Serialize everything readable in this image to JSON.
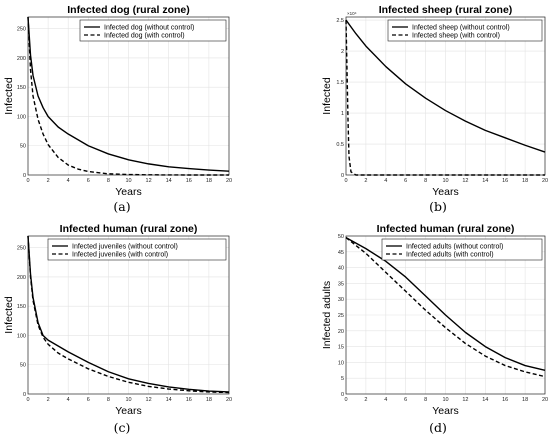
{
  "chart_data": [
    {
      "type": "line",
      "title": "Infected dog (rural zone)",
      "xlabel": "Years",
      "ylabel": "Infected",
      "xlim": [
        0,
        20
      ],
      "ylim": [
        0,
        270
      ],
      "xticks": [
        "0",
        "2",
        "4",
        "6",
        "8",
        "10",
        "12",
        "14",
        "16",
        "18",
        "20"
      ],
      "yticks": [
        "0",
        "50",
        "100",
        "150",
        "200",
        "250"
      ],
      "ytick_values": [
        0,
        50,
        100,
        150,
        200,
        250
      ],
      "grid": true,
      "legend_position": "top-right",
      "caption": "(a)",
      "series": [
        {
          "name": "Infected dog (without control)",
          "style": "solid",
          "x": [
            0,
            0.25,
            0.5,
            1,
            1.5,
            2,
            3,
            4,
            6,
            8,
            10,
            12,
            14,
            16,
            18,
            20
          ],
          "y": [
            270,
            205,
            170,
            135,
            115,
            100,
            82,
            70,
            50,
            36,
            26,
            19,
            14,
            11,
            8.5,
            6.5
          ]
        },
        {
          "name": "Infected dog (with control)",
          "style": "dashed",
          "x": [
            0,
            0.25,
            0.5,
            1,
            1.5,
            2,
            3,
            4,
            5,
            6,
            8,
            10,
            12,
            14,
            16,
            18,
            20
          ],
          "y": [
            270,
            180,
            135,
            95,
            70,
            52,
            30,
            17,
            10,
            6,
            2,
            0.8,
            0.3,
            0.1,
            0,
            0,
            0
          ]
        }
      ]
    },
    {
      "type": "line",
      "title": "Infected sheep (rural zone)",
      "xlabel": "Years",
      "ylabel": "Infected",
      "xlim": [
        0,
        20
      ],
      "ylim": [
        0,
        2.55
      ],
      "xticks": [
        "0",
        "2",
        "4",
        "6",
        "8",
        "10",
        "12",
        "14",
        "16",
        "18",
        "20"
      ],
      "yticks": [
        "0",
        "0.5",
        "1",
        "1.5",
        "2",
        "2.5"
      ],
      "ytick_values": [
        0,
        0.5,
        1,
        1.5,
        2,
        2.5
      ],
      "y_multiplier": "×10⁴",
      "grid": true,
      "legend_position": "top-right",
      "caption": "(b)",
      "series": [
        {
          "name": "Infected sheep (without control)",
          "style": "solid",
          "x": [
            0,
            1,
            2,
            4,
            6,
            8,
            10,
            12,
            14,
            16,
            18,
            20
          ],
          "y": [
            2.5,
            2.28,
            2.08,
            1.75,
            1.47,
            1.24,
            1.04,
            0.87,
            0.72,
            0.6,
            0.48,
            0.37
          ]
        },
        {
          "name": "Infected sheep (with control)",
          "style": "dashed",
          "x": [
            0,
            0.1,
            0.2,
            0.3,
            0.5,
            1,
            2,
            5,
            10,
            15,
            20
          ],
          "y": [
            2.5,
            1.7,
            0.9,
            0.3,
            0.05,
            0,
            0,
            0,
            0,
            0,
            0
          ]
        }
      ]
    },
    {
      "type": "line",
      "title": "Infected human (rural zone)",
      "xlabel": "Years",
      "ylabel": "Infected",
      "xlim": [
        0,
        20
      ],
      "ylim": [
        0,
        270
      ],
      "xticks": [
        "0",
        "2",
        "4",
        "6",
        "8",
        "10",
        "12",
        "14",
        "16",
        "18",
        "20"
      ],
      "yticks": [
        "0",
        "50",
        "100",
        "150",
        "200",
        "250"
      ],
      "ytick_values": [
        0,
        50,
        100,
        150,
        200,
        250
      ],
      "grid": true,
      "legend_position": "top-right",
      "caption": "(c)",
      "series": [
        {
          "name": "Infected juveniles (without control)",
          "style": "solid",
          "x": [
            0,
            0.25,
            0.5,
            1,
            1.5,
            2,
            3,
            4,
            6,
            8,
            10,
            12,
            14,
            16,
            18,
            20
          ],
          "y": [
            275,
            205,
            165,
            122,
            100,
            92,
            82,
            72,
            54,
            38,
            26,
            18,
            12,
            8,
            5,
            3.5
          ]
        },
        {
          "name": "Infected juveniles (with control)",
          "style": "dashed",
          "x": [
            0,
            0.25,
            0.5,
            1,
            1.5,
            2,
            3,
            4,
            6,
            8,
            10,
            12,
            14,
            16,
            18,
            20
          ],
          "y": [
            275,
            200,
            160,
            118,
            97,
            85,
            70,
            60,
            43,
            30,
            20,
            13,
            8.5,
            5.5,
            3.5,
            2.5
          ]
        }
      ]
    },
    {
      "type": "line",
      "title": "Infected human (rural zone)",
      "xlabel": "Years",
      "ylabel": "Infected adults",
      "xlim": [
        0,
        20
      ],
      "ylim": [
        0,
        50
      ],
      "xticks": [
        "0",
        "2",
        "4",
        "6",
        "8",
        "10",
        "12",
        "14",
        "16",
        "18",
        "20"
      ],
      "yticks": [
        "0",
        "5",
        "10",
        "15",
        "20",
        "25",
        "30",
        "35",
        "40",
        "45",
        "50"
      ],
      "ytick_values": [
        0,
        5,
        10,
        15,
        20,
        25,
        30,
        35,
        40,
        45,
        50
      ],
      "grid": true,
      "legend_position": "top-right",
      "caption": "(d)",
      "series": [
        {
          "name": "Infected adults (without control)",
          "style": "solid",
          "x": [
            0,
            2,
            4,
            6,
            8,
            10,
            12,
            14,
            16,
            18,
            20
          ],
          "y": [
            49.5,
            46,
            42,
            37,
            31,
            25,
            19.5,
            15,
            11.5,
            9,
            7.5
          ]
        },
        {
          "name": "Infected adults (with control)",
          "style": "dashed",
          "x": [
            0,
            2,
            4,
            6,
            8,
            10,
            12,
            14,
            16,
            18,
            20
          ],
          "y": [
            49.5,
            44.5,
            38.5,
            32.5,
            26.5,
            21,
            16,
            12,
            9,
            7,
            5.5
          ]
        }
      ]
    }
  ]
}
